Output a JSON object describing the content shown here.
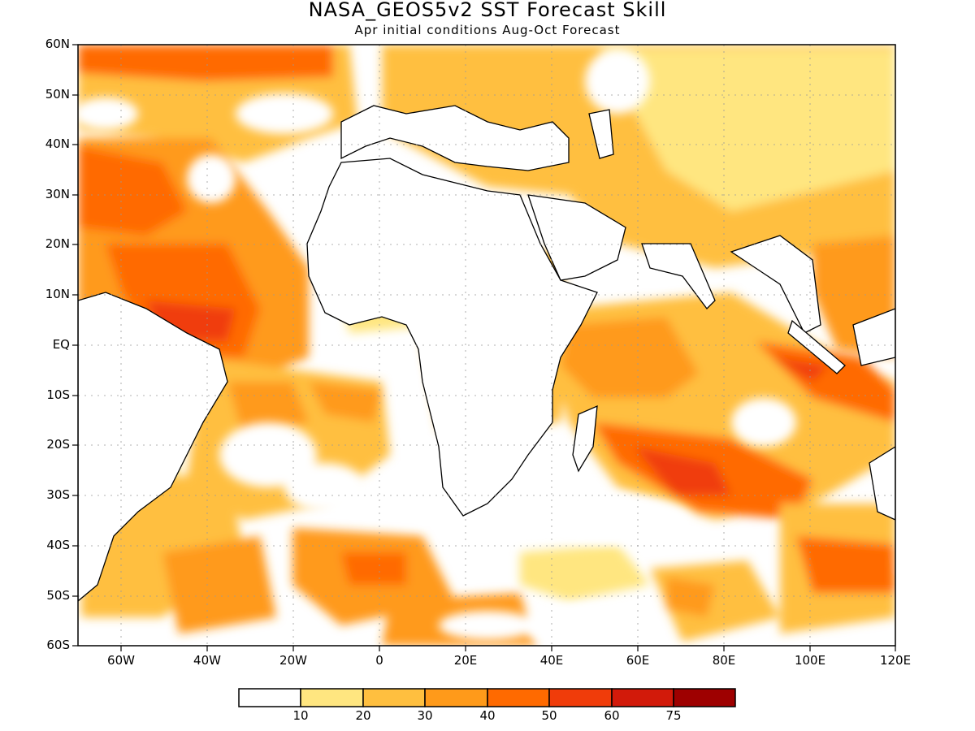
{
  "title": "NASA_GEOS5v2 SST Forecast Skill",
  "subtitle": "Apr initial conditions  Aug-Oct Forecast",
  "axes": {
    "lat_labels": [
      "60N",
      "50N",
      "40N",
      "30N",
      "20N",
      "10N",
      "EQ",
      "10S",
      "20S",
      "30S",
      "40S",
      "50S",
      "60S"
    ],
    "lon_labels": [
      "60W",
      "40W",
      "20W",
      "0",
      "20E",
      "40E",
      "60E",
      "80E",
      "100E",
      "120E"
    ],
    "lat_range": [
      -60,
      60
    ],
    "lon_range": [
      -70,
      120
    ]
  },
  "colorbar": {
    "labels": [
      "10",
      "20",
      "30",
      "40",
      "50",
      "60",
      "75"
    ],
    "colors": [
      "#ffffff",
      "#ffe680",
      "#ffbf3f",
      "#ff9a1a",
      "#ff6a00",
      "#f03c0a",
      "#d21a0a",
      "#9e0000"
    ]
  },
  "chart_data": {
    "type": "heatmap",
    "title": "NASA_GEOS5v2 SST Forecast Skill",
    "subtitle": "Apr initial conditions  Aug-Oct Forecast",
    "x_range": [
      -70,
      120
    ],
    "y_range": [
      -60,
      60
    ],
    "levels": [
      10,
      20,
      30,
      40,
      50,
      60,
      75
    ]
  }
}
